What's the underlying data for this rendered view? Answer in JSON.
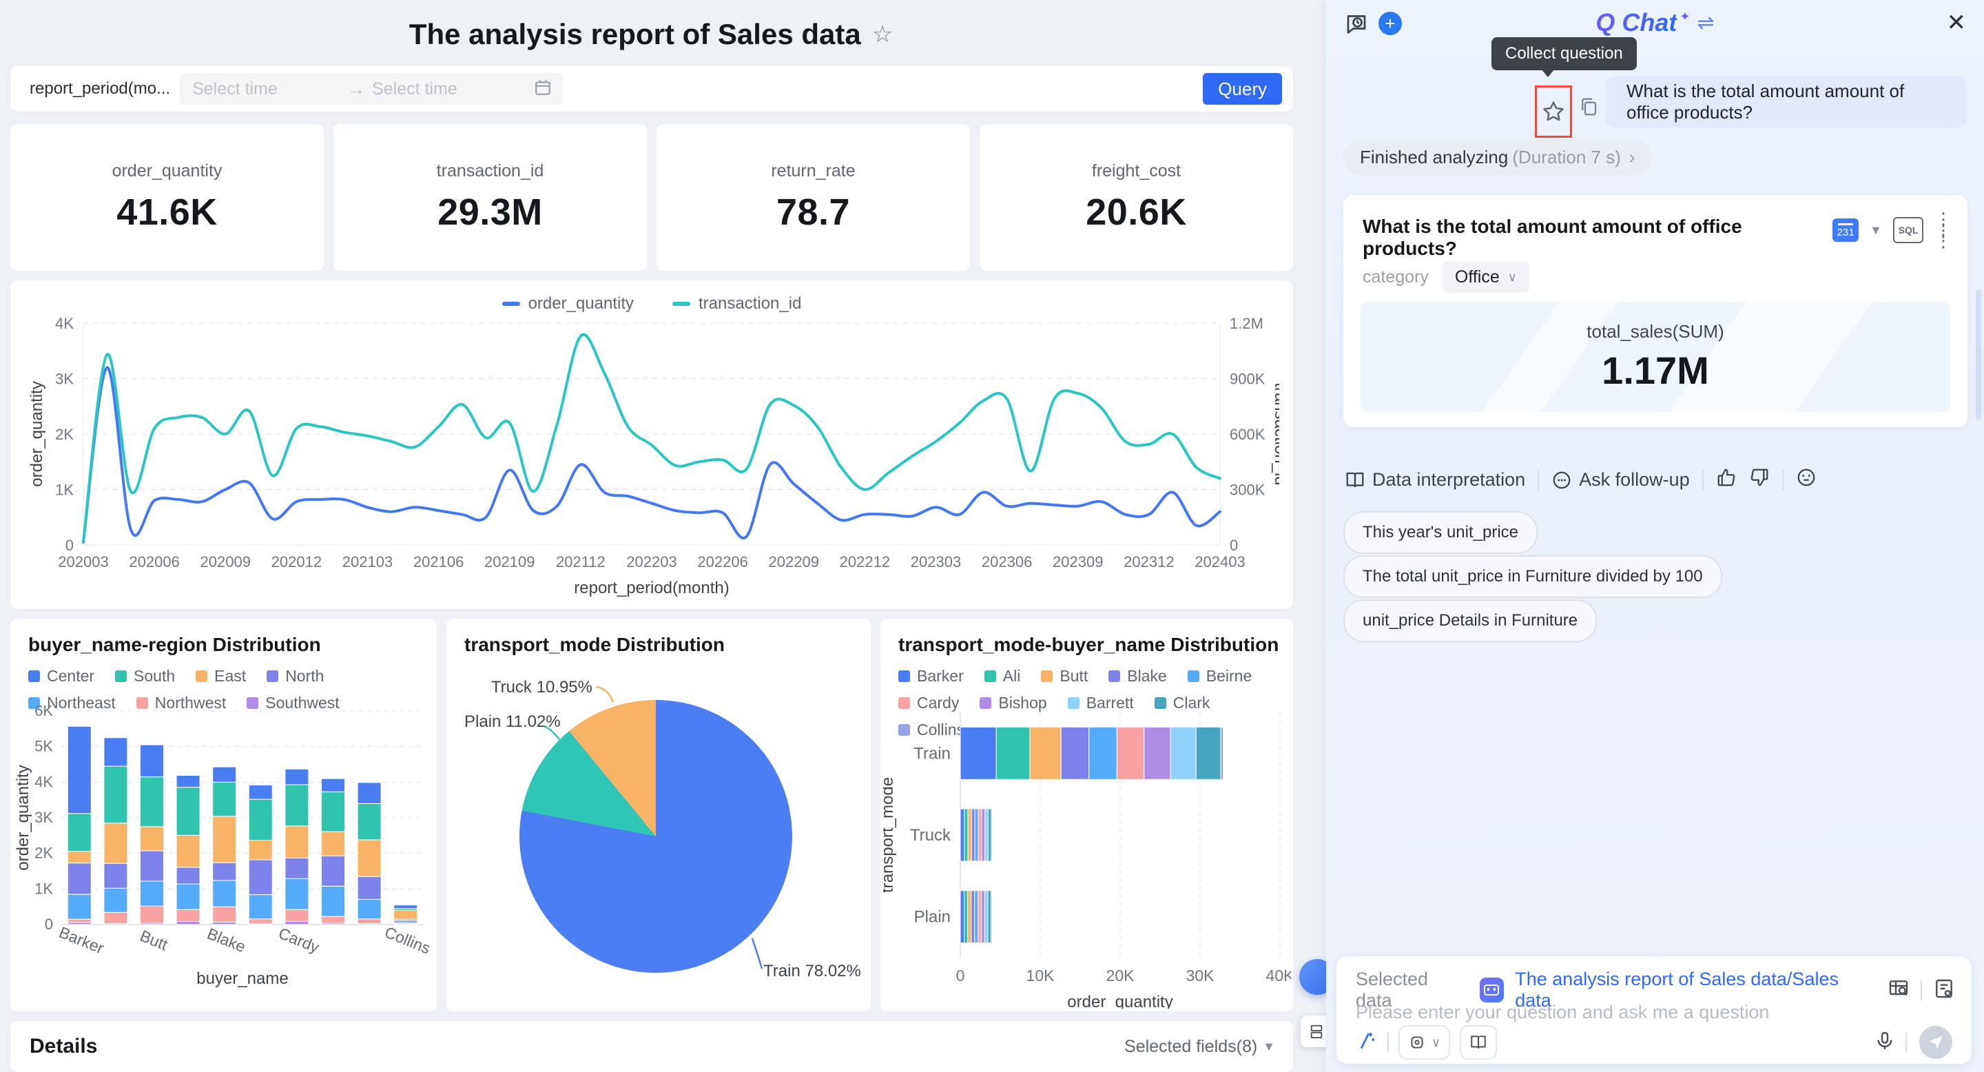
{
  "dashboard": {
    "title": "The analysis report of Sales data",
    "filter": {
      "field_label": "report_period(mo...",
      "start_placeholder": "Select time",
      "end_placeholder": "Select time",
      "arrow": "→",
      "query_label": "Query"
    },
    "kpis": [
      {
        "label": "order_quantity",
        "value": "41.6K"
      },
      {
        "label": "transaction_id",
        "value": "29.3M"
      },
      {
        "label": "return_rate",
        "value": "78.7"
      },
      {
        "label": "freight_cost",
        "value": "20.6K"
      }
    ],
    "details": {
      "title": "Details",
      "selected_fields": "Selected fields(8)"
    }
  },
  "chart_data": [
    {
      "id": "trend",
      "type": "line",
      "xlabel": "report_period(month)",
      "ylabel_left": "order_quantity",
      "ylabel_right": "transaction_id",
      "yticks_left": [
        "0",
        "1K",
        "2K",
        "3K",
        "4K"
      ],
      "yticks_right": [
        "0",
        "300K",
        "600K",
        "900K",
        "1.2M"
      ],
      "ylim_left": [
        0,
        4000
      ],
      "ylim_right": [
        0,
        1200000
      ],
      "x_ticks": [
        "202003",
        "202006",
        "202009",
        "202012",
        "202103",
        "202106",
        "202109",
        "202112",
        "202203",
        "202206",
        "202209",
        "202212",
        "202303",
        "202306",
        "202309",
        "202312",
        "202403"
      ],
      "series": [
        {
          "name": "order_quantity",
          "color": "#4477F2",
          "axis": "left",
          "values": [
            50,
            3200,
            280,
            800,
            820,
            780,
            1000,
            1120,
            470,
            780,
            820,
            820,
            680,
            600,
            680,
            620,
            550,
            500,
            1350,
            620,
            700,
            1450,
            950,
            880,
            750,
            620,
            580,
            580,
            150,
            1450,
            1100,
            750,
            450,
            550,
            550,
            520,
            680,
            550,
            950,
            700,
            750,
            720,
            700,
            780,
            550,
            550,
            950,
            350,
            600
          ]
        },
        {
          "name": "transaction_id",
          "color": "#29C6C3",
          "axis": "right",
          "values": [
            20000,
            1030000,
            290000,
            630000,
            690000,
            690000,
            600000,
            725000,
            375000,
            630000,
            640000,
            610000,
            590000,
            560000,
            530000,
            640000,
            760000,
            580000,
            660000,
            290000,
            650000,
            1130000,
            930000,
            640000,
            540000,
            430000,
            450000,
            460000,
            410000,
            760000,
            755000,
            640000,
            420000,
            300000,
            390000,
            480000,
            560000,
            660000,
            780000,
            790000,
            400000,
            790000,
            820000,
            740000,
            560000,
            545000,
            600000,
            420000,
            360000
          ]
        }
      ]
    },
    {
      "id": "buyer_region",
      "type": "bar-stacked",
      "title": "buyer_name-region Distribution",
      "legend": [
        "Center",
        "South",
        "East",
        "North",
        "Northeast",
        "Northwest",
        "Southwest"
      ],
      "categories": [
        "Barker",
        "",
        "Butt",
        "",
        "Blake",
        "",
        "Cardy",
        "",
        "",
        "Collins"
      ],
      "xlabel": "buyer_name",
      "ylabel": "order_quantity",
      "yticks": [
        "0",
        "1K",
        "2K",
        "3K",
        "4K",
        "5K",
        "6K"
      ],
      "ylim": [
        0,
        6000
      ],
      "series_bottom_up": [
        {
          "name": "Southwest",
          "color": "#B08CE5",
          "values": [
            60,
            30,
            40,
            90,
            70,
            20,
            90,
            40,
            30,
            20
          ]
        },
        {
          "name": "Northwest",
          "color": "#F9A2A2",
          "values": [
            90,
            310,
            480,
            330,
            430,
            140,
            330,
            190,
            130,
            30
          ]
        },
        {
          "name": "Northeast",
          "color": "#54ABF8",
          "values": [
            700,
            680,
            700,
            720,
            740,
            680,
            870,
            850,
            550,
            60
          ]
        },
        {
          "name": "North",
          "color": "#7D83E9",
          "values": [
            880,
            700,
            850,
            470,
            500,
            980,
            580,
            850,
            640,
            40
          ]
        },
        {
          "name": "East",
          "color": "#F9B366",
          "values": [
            330,
            1130,
            680,
            900,
            1300,
            550,
            900,
            680,
            1030,
            250
          ]
        },
        {
          "name": "South",
          "color": "#30C4AE",
          "values": [
            1060,
            1600,
            1400,
            1350,
            960,
            1150,
            1160,
            1120,
            1020,
            50
          ]
        },
        {
          "name": "Center",
          "color": "#4B7DF2",
          "values": [
            2450,
            800,
            900,
            330,
            430,
            400,
            440,
            370,
            590,
            100
          ]
        }
      ]
    },
    {
      "id": "transport_pie",
      "type": "pie",
      "title": "transport_mode Distribution",
      "slices": [
        {
          "label": "Train",
          "pct": 78.02,
          "color": "#4C7DF2"
        },
        {
          "label": "Plain",
          "pct": 11.02,
          "color": "#2EC5B6"
        },
        {
          "label": "Truck",
          "pct": 10.95,
          "color": "#F9B366"
        }
      ]
    },
    {
      "id": "transport_buyer",
      "type": "bar-stacked-horizontal",
      "title": "transport_mode-buyer_name Distribution",
      "legend": [
        "Barker",
        "Ali",
        "Butt",
        "Blake",
        "Beirne",
        "Cardy",
        "Bishop",
        "Barrett",
        "Clark",
        "Collins"
      ],
      "categories": [
        "Train",
        "Truck",
        "Plain"
      ],
      "xlabel": "order_quantity",
      "ylabel": "transport_mode",
      "xticks": [
        "0",
        "10K",
        "20K",
        "30K",
        "40K"
      ],
      "xlim": [
        0,
        40000
      ],
      "series": [
        {
          "name": "Barker",
          "color": "#4B7DF2",
          "values": [
            4500,
            500,
            480
          ]
        },
        {
          "name": "Ali",
          "color": "#30C4AE",
          "values": [
            4200,
            450,
            440
          ]
        },
        {
          "name": "Butt",
          "color": "#F9B366",
          "values": [
            3900,
            450,
            450
          ]
        },
        {
          "name": "Blake",
          "color": "#7D83E9",
          "values": [
            3500,
            420,
            420
          ]
        },
        {
          "name": "Beirne",
          "color": "#54ABF8",
          "values": [
            3500,
            430,
            430
          ]
        },
        {
          "name": "Cardy",
          "color": "#F9A2A2",
          "values": [
            3400,
            420,
            420
          ]
        },
        {
          "name": "Bishop",
          "color": "#B08CE5",
          "values": [
            3300,
            410,
            410
          ]
        },
        {
          "name": "Barrett",
          "color": "#8FD2F9",
          "values": [
            3200,
            400,
            400
          ]
        },
        {
          "name": "Clark",
          "color": "#46A4BE",
          "values": [
            3100,
            390,
            390
          ]
        },
        {
          "name": "Collins",
          "color": "#97A4E8",
          "values": [
            300,
            80,
            80
          ]
        }
      ]
    }
  ],
  "chat": {
    "header": {
      "title": "Q Chat",
      "sparkle": "✦",
      "swap": "⇌",
      "close": "✕",
      "new": "+"
    },
    "tooltip": "Collect question",
    "question": "What is the total amount amount of office products?",
    "status": {
      "finished": "Finished analyzing",
      "duration": "(Duration 7 s)",
      "chevron": "›"
    },
    "answer": {
      "title": "What is the total amount amount of office products?",
      "chart_chip": "231",
      "sql_label": "SQL",
      "filter_label": "category",
      "filter_value": "Office",
      "metric_label": "total_sales(SUM)",
      "metric_value": "1.17M"
    },
    "actions": {
      "interpret": "Data interpretation",
      "follow_up": "Ask follow-up"
    },
    "suggestions": [
      "This year's unit_price",
      "The total unit_price in Furniture divided by 100",
      "unit_price Details in Furniture"
    ],
    "composer": {
      "selected_data_label": "Selected data",
      "dataset_link": "The analysis report of Sales data/Sales data",
      "placeholder": "Please enter your question and ask me a question"
    }
  }
}
